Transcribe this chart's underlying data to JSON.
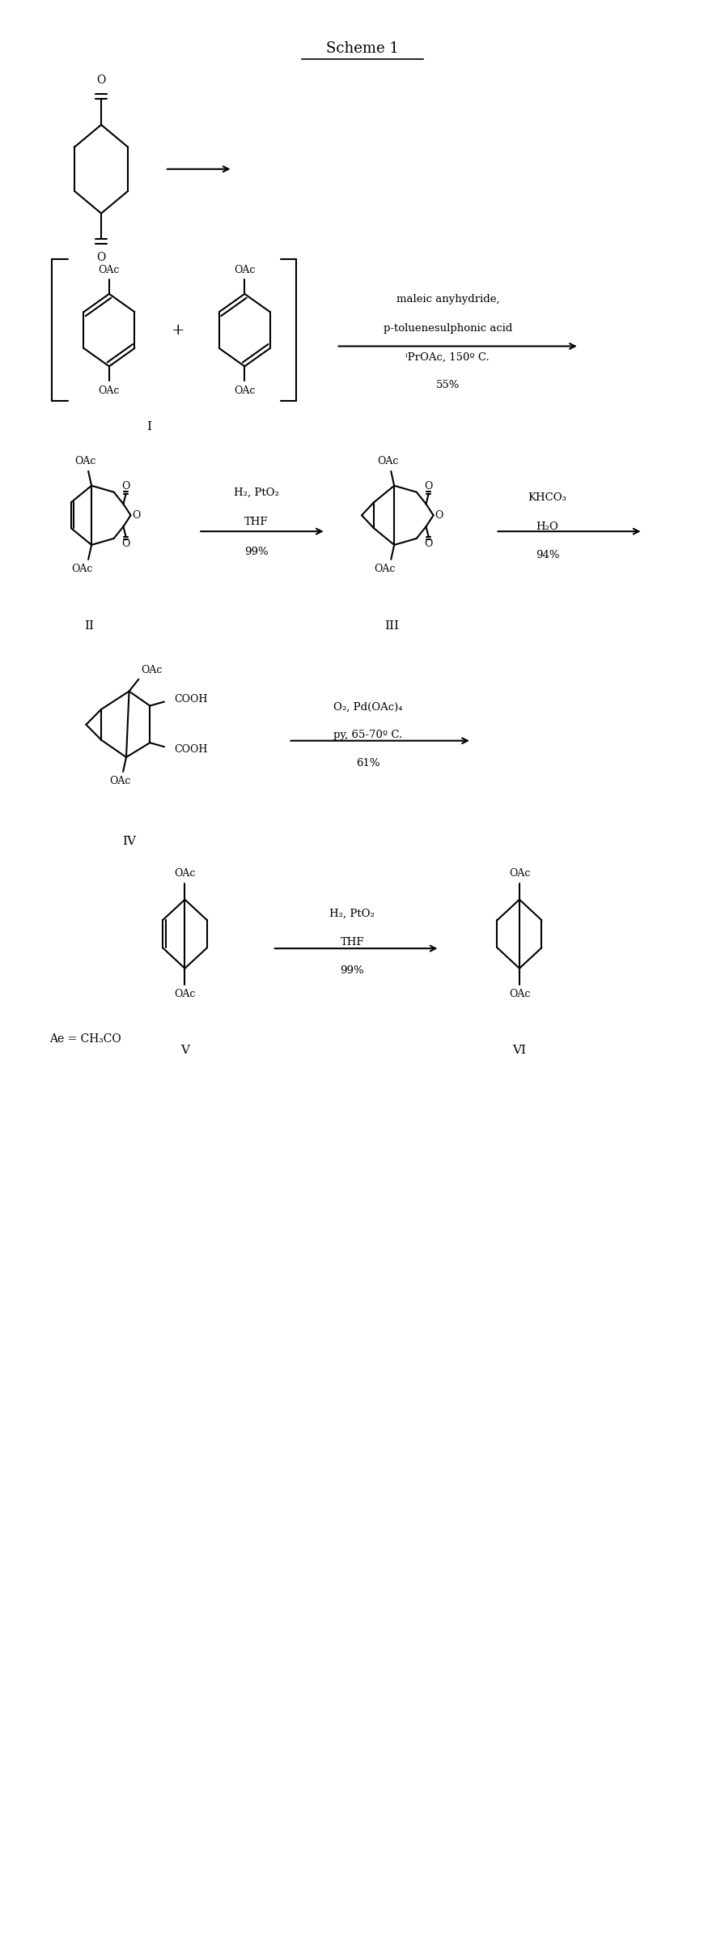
{
  "title": "Scheme 1",
  "background_color": "#ffffff",
  "text_color": "#000000",
  "line_color": "#000000",
  "fig_width": 8.96,
  "fig_height": 24.03,
  "footnote": "Ae = CH₃CO",
  "row1_conditions": [
    "maleic anyhydride,",
    "p-toluenesulphonic acid",
    "ⁱPrOAc, 150º C.",
    "55%"
  ],
  "row2_cond1": [
    "H₂, PtO₂",
    "THF",
    "99%"
  ],
  "row2_cond2": [
    "KHCO₃",
    "H₂O",
    "94%"
  ],
  "row3_conditions": [
    "O₂, Pd(OAc)₄",
    "py, 65-70º C.",
    "61%"
  ],
  "row4_conditions": [
    "H₂, PtO₂",
    "THF",
    "99%"
  ],
  "compound_labels": [
    "I",
    "II",
    "III",
    "IV",
    "V",
    "VI"
  ]
}
